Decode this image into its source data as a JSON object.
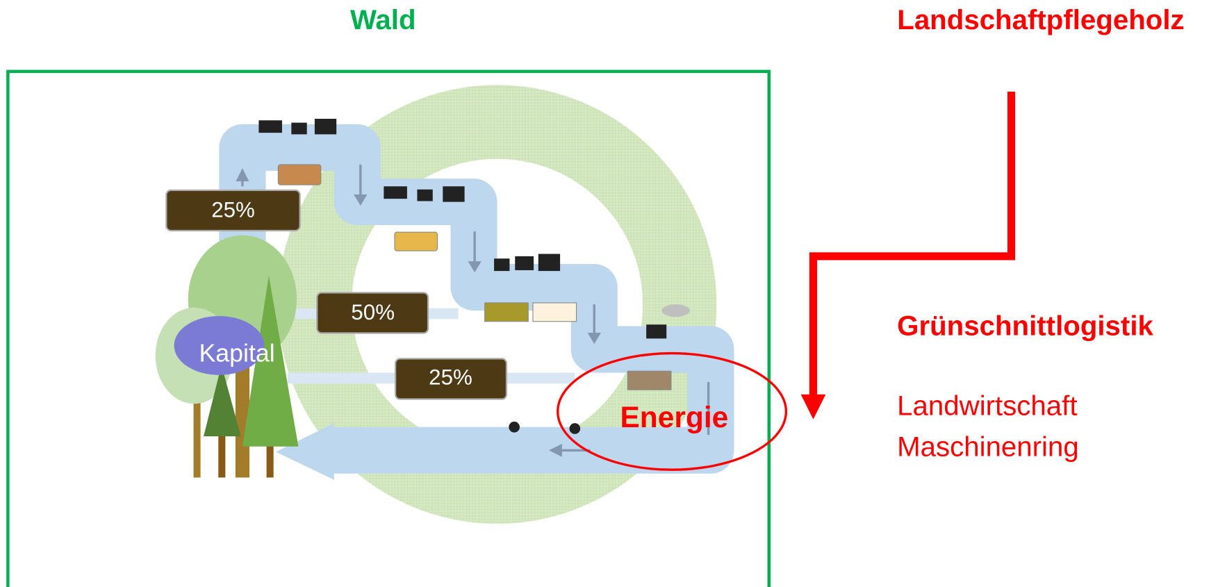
{
  "header": {
    "left_title": "Wald",
    "right_title": "Landschaftpflegeholz"
  },
  "diagram": {
    "flows": [
      "25%",
      "50%",
      "25%"
    ],
    "capital": "Kapital",
    "energy": "Energie"
  },
  "side": {
    "title": "Grünschnittlogistik",
    "lines": [
      "Landwirtschaft",
      "Maschinenring"
    ]
  }
}
